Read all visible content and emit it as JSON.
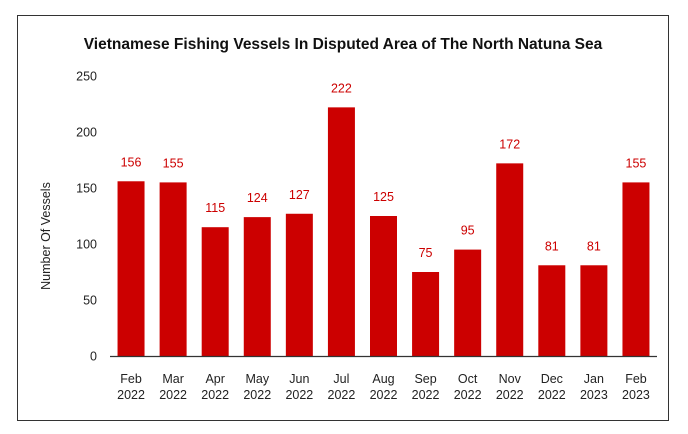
{
  "chart_data": {
    "type": "bar",
    "title": "Vietnamese Fishing Vessels In Disputed Area of The North Natuna Sea",
    "xlabel": "",
    "ylabel": "Number Of Vessels",
    "ylim": [
      0,
      250
    ],
    "yticks": [
      "0",
      "50",
      "100",
      "150",
      "200",
      "250"
    ],
    "grid": false,
    "bar_color": "#cc0000",
    "label_color": "#cc0000",
    "categories": [
      [
        "Feb",
        "2022"
      ],
      [
        "Mar",
        "2022"
      ],
      [
        "Apr",
        "2022"
      ],
      [
        "May",
        "2022"
      ],
      [
        "Jun",
        "2022"
      ],
      [
        "Jul",
        "2022"
      ],
      [
        "Aug",
        "2022"
      ],
      [
        "Sep",
        "2022"
      ],
      [
        "Oct",
        "2022"
      ],
      [
        "Nov",
        "2022"
      ],
      [
        "Dec",
        "2022"
      ],
      [
        "Jan",
        "2023"
      ],
      [
        "Feb",
        "2023"
      ]
    ],
    "values": [
      156,
      155,
      115,
      124,
      127,
      222,
      125,
      75,
      95,
      172,
      81,
      81,
      155
    ]
  }
}
